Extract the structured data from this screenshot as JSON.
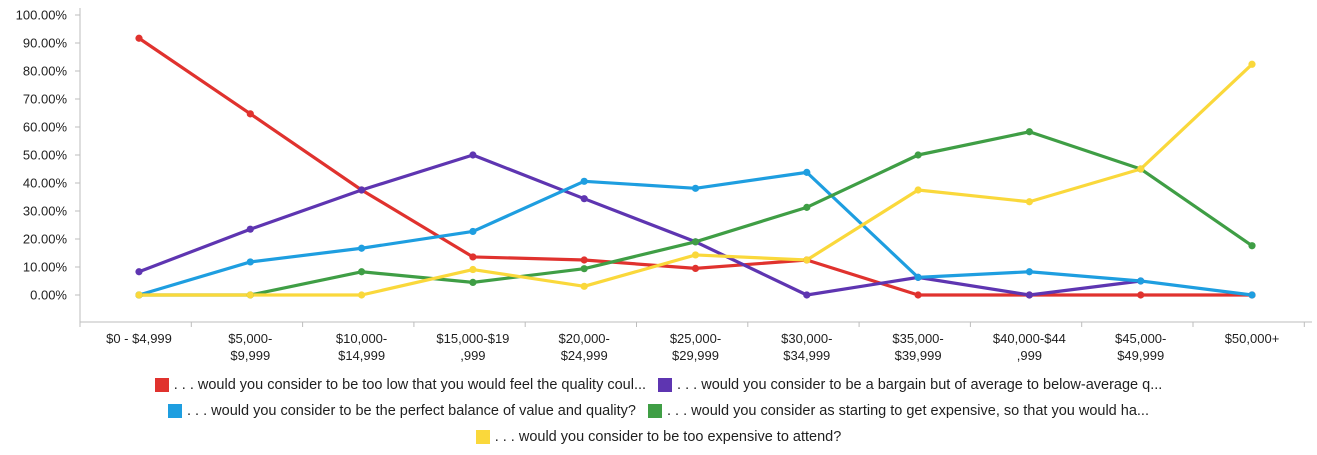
{
  "chart_data": {
    "type": "line",
    "categories": [
      [
        "$0 - $4,999"
      ],
      [
        "$5,000-",
        "$9,999"
      ],
      [
        "$10,000-",
        "$14,999"
      ],
      [
        "$15,000-$19",
        ",999"
      ],
      [
        "$20,000-",
        "$24,999"
      ],
      [
        "$25,000-",
        "$29,999"
      ],
      [
        "$30,000-",
        "$34,999"
      ],
      [
        "$35,000-",
        "$39,999"
      ],
      [
        "$40,000-$44",
        ",999"
      ],
      [
        "$45,000-",
        "$49,999"
      ],
      [
        "$50,000+"
      ]
    ],
    "ylim": [
      0,
      100
    ],
    "yticks": [
      "0.00%",
      "10.00%",
      "20.00%",
      "30.00%",
      "40.00%",
      "50.00%",
      "60.00%",
      "70.00%",
      "80.00%",
      "90.00%",
      "100.00%"
    ],
    "grid": false,
    "legend_position": "bottom",
    "series": [
      {
        "name": ". . . would you consider to be too low that you would feel the quality coul...",
        "color": "#e0322e",
        "values": [
          91.7,
          64.7,
          37.5,
          13.6,
          12.5,
          9.5,
          12.5,
          0,
          0,
          0,
          0
        ]
      },
      {
        "name": ". . . would you consider to be a bargain but of average to below-average q...",
        "color": "#5e35b1",
        "values": [
          8.3,
          23.5,
          37.5,
          50.0,
          34.4,
          19.0,
          0,
          6.3,
          0,
          5.0,
          null
        ]
      },
      {
        "name": ". . . would you consider to be the perfect balance of value and quality?",
        "color": "#1e9ee0",
        "values": [
          0,
          11.8,
          16.7,
          22.7,
          40.6,
          38.1,
          43.8,
          6.3,
          8.3,
          5.0,
          0
        ]
      },
      {
        "name": ". . . would you consider as starting to get expensive, so that you would ha...",
        "color": "#3f9e45",
        "values": [
          0,
          0,
          8.3,
          4.5,
          9.4,
          19.0,
          31.3,
          50.0,
          58.3,
          45.0,
          17.6
        ]
      },
      {
        "name": ". . . would you consider to be too expensive to attend?",
        "color": "#fad83b",
        "values": [
          0,
          0,
          0,
          9.1,
          3.1,
          14.3,
          12.5,
          37.5,
          33.3,
          45.0,
          82.4
        ]
      }
    ]
  },
  "legend_rows": [
    [
      0,
      1
    ],
    [
      2,
      3
    ],
    [
      4
    ]
  ]
}
